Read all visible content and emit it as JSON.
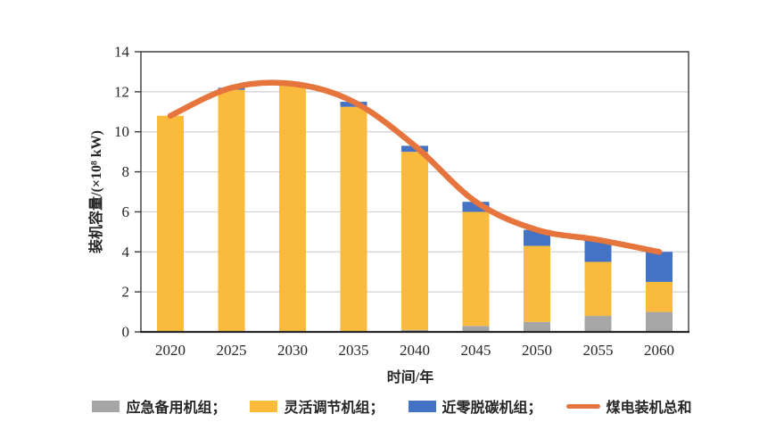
{
  "chart_data": {
    "type": "bar",
    "subtype": "stacked-bars-with-total-line",
    "title": "",
    "categories": [
      "2020",
      "2025",
      "2030",
      "2035",
      "2040",
      "2045",
      "2050",
      "2055",
      "2060"
    ],
    "series": [
      {
        "name": "应急备用机组",
        "color": "#A6A6A6",
        "values": [
          0,
          0,
          0,
          0,
          0.1,
          0.3,
          0.5,
          0.8,
          1.0
        ]
      },
      {
        "name": "灵活调节机组",
        "color": "#FABB3D",
        "values": [
          10.8,
          12.1,
          12.3,
          11.25,
          8.9,
          5.7,
          3.8,
          2.7,
          1.5
        ]
      },
      {
        "name": "近零脱碳机组",
        "color": "#4472C4",
        "values": [
          0,
          0.1,
          0.1,
          0.25,
          0.3,
          0.5,
          0.8,
          1.1,
          1.5
        ]
      }
    ],
    "line_series": {
      "name": "煤电装机总和",
      "color": "#E5753C",
      "values": [
        10.8,
        12.2,
        12.4,
        11.5,
        9.3,
        6.5,
        5.1,
        4.6,
        4.0
      ]
    },
    "xlabel": "时间/年",
    "ylabel": "装机容量/(×10⁸ kW)",
    "ylim": [
      0,
      14
    ],
    "yticks": [
      0,
      2,
      4,
      6,
      8,
      10,
      12,
      14
    ],
    "grid": true,
    "grid_color": "#D2D2D2",
    "axis_color": "#3A3A3A",
    "legend_position": "bottom"
  },
  "legend": {
    "items": [
      {
        "label": "应急备用机组；",
        "color": "#A6A6A6",
        "swatch": "rect"
      },
      {
        "label": "灵活调节机组；",
        "color": "#FABB3D",
        "swatch": "rect"
      },
      {
        "label": "近零脱碳机组；",
        "color": "#4472C4",
        "swatch": "rect"
      },
      {
        "label": "煤电装机总和",
        "color": "#E5753C",
        "swatch": "line"
      }
    ]
  }
}
